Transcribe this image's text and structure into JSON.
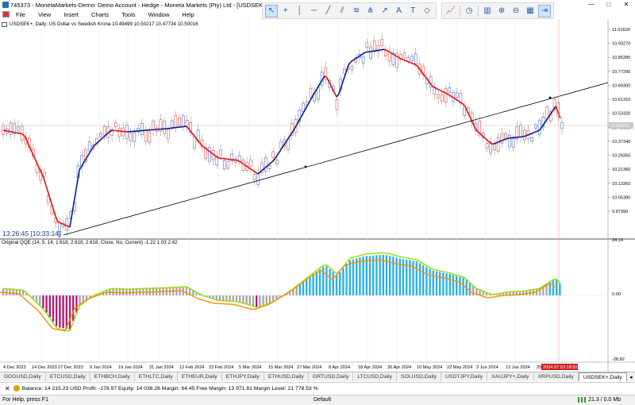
{
  "window": {
    "title": "745373 - MonetaMarkets-Demo: Demo Account - Hedge - Moneta Markets (Pty) Ltd - [USDSEK+,Daily]",
    "controls": [
      "—",
      "□",
      "✕"
    ]
  },
  "menu": [
    "File",
    "View",
    "Insert",
    "Charts",
    "Tools",
    "Window",
    "Help"
  ],
  "toolbar_icons": [
    "cursor-icon",
    "crosshair-icon",
    "vertical-line-icon",
    "horizontal-line-icon",
    "trendline-icon",
    "channel-icon",
    "fibonacci-icon",
    "pitchfork-icon",
    "arrow-tools-icon",
    "text-icon",
    "label-icon",
    "shapes-icon"
  ],
  "toolbar2_icons": [
    "chart-type-icon",
    "periods-icon",
    "templates-icon",
    "zoom-in-icon",
    "zoom-out-icon",
    "tile-icon",
    "scroll-icon"
  ],
  "chart": {
    "symbol_label": "USDSEK+, Daily:  US Dollar vs Swedish Krona  10.49499 10.50217 10.47734 10.50016",
    "qqe_label": "Original QQE (14, 5, 14, 1.618, 2.618, 2.618, Close, No, Current) -1.22 1.03 2.42",
    "clock": "13:26:45 [10:33:14]",
    "price_axis": [
      "11.01620",
      "10.93270",
      "10.85280",
      "10.77290",
      "10.69300",
      "10.61310",
      "10.53320",
      "10.45330",
      "10.37340",
      "10.29350",
      "10.21360",
      "10.13360",
      "10.05380",
      "9.97390"
    ],
    "current_price": "10.50016",
    "qqe_axis": [
      "24.14",
      "0.00",
      "-28.82"
    ],
    "date_axis": [
      "4 Dec 2023",
      "14 Dec 2023",
      "27 Dec 2023",
      "9 Jan 2024",
      "19 Jan 2024",
      "31 Jan 2024",
      "12 Feb 2024",
      "22 Feb 2024",
      "5 Mar 2024",
      "15 Mar 2024",
      "27 Mar 2024",
      "8 Apr 2024",
      "18 Apr 2024",
      "30 Apr 2024",
      "10 May 2024",
      "22 May 2024",
      "3 Jun 2024",
      "13 Jun 2024",
      "25"
    ],
    "current_date": "2024.07.03 18:52",
    "colors": {
      "bull": "#4a6fd1",
      "bear": "#e05050",
      "ma_up": "#0a1e8c",
      "ma_down": "#e81010",
      "hist_up": "#2bb0e8",
      "hist_down": "#b01d7a",
      "hist_neutral": "#a8a8a8",
      "qqe_fast": "#8fe000",
      "qqe_slow": "#ff8a00"
    }
  },
  "tabs": [
    "DOGUSD,Daily",
    "ETCUSD,Daily",
    "ETHBCH,Daily",
    "ETHLTC,Daily",
    "ETHEUR,Daily",
    "ETHJPY,Daily",
    "ETHUSD,Daily",
    "GRTUSD,Daily",
    "LTCUSD,Daily",
    "SOLUSD,Daily",
    "USDTJPY,Daily",
    "XAUJPY+,Daily",
    "XRPUSD,Daily",
    "USDSEK+,Daily"
  ],
  "tab_arrows": [
    "◂",
    "▸"
  ],
  "balance_line": "Balance: 14 215.23 USD   Profit: -178.97   Equity: 14 036.26   Margin: 64.45   Free Margin: 13 971.81   Margin Level: 21 778.53 %",
  "status": {
    "help": "For Help, press F1",
    "profile": "Default",
    "net": "21.3 / 0.0 Mb"
  }
}
